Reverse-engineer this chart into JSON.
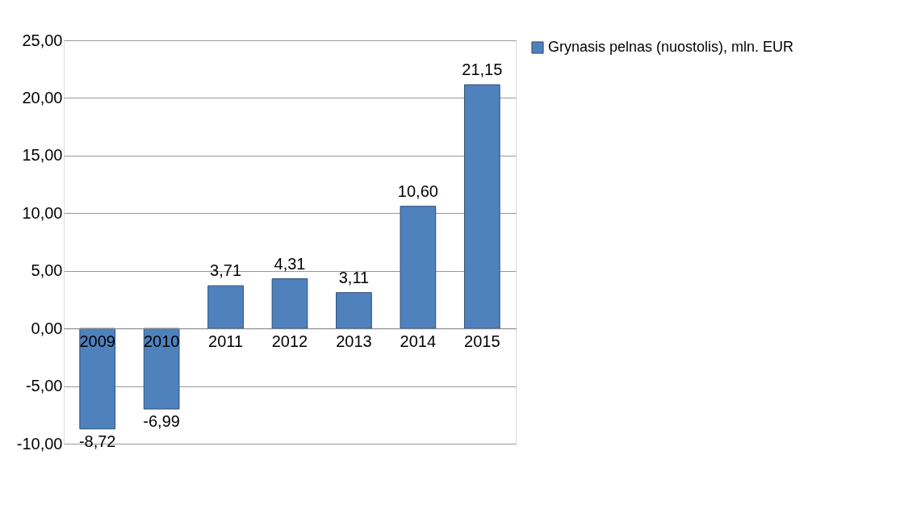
{
  "chart_data": {
    "type": "bar",
    "categories": [
      "2009",
      "2010",
      "2011",
      "2012",
      "2013",
      "2014",
      "2015"
    ],
    "series": [
      {
        "name": "Grynasis pelnas (nuostolis), mln. EUR",
        "color": "#4f81bd",
        "values": [
          -8.72,
          -6.99,
          3.71,
          4.31,
          3.11,
          10.6,
          21.15
        ]
      }
    ],
    "value_labels": [
      "-8,72",
      "-6,99",
      "3,71",
      "4,31",
      "3,11",
      "10,60",
      "21,15"
    ],
    "ylim": [
      -10,
      25
    ],
    "yticks": [
      {
        "value": -10,
        "label": "-10,00"
      },
      {
        "value": -5,
        "label": "-5,00"
      },
      {
        "value": 0,
        "label": "0,00"
      },
      {
        "value": 5,
        "label": "5,00"
      },
      {
        "value": 10,
        "label": "10,00"
      },
      {
        "value": 15,
        "label": "15,00"
      },
      {
        "value": 20,
        "label": "20,00"
      },
      {
        "value": 25,
        "label": "25,00"
      }
    ],
    "grid": "y",
    "legend": "right"
  }
}
